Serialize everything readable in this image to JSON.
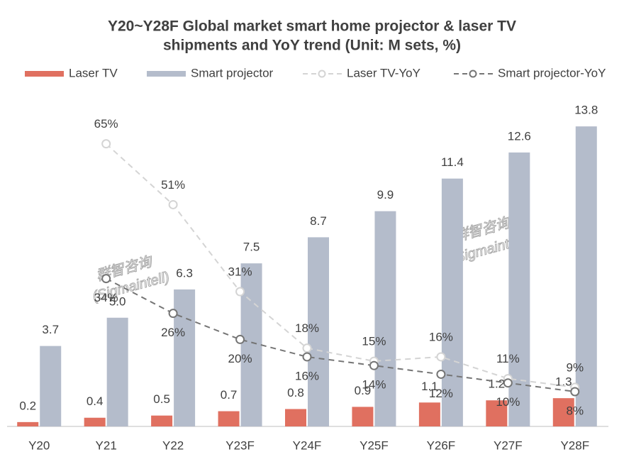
{
  "chart_data": {
    "type": "bar_line",
    "title": "Y20~Y28F Global market smart home  projector & laser TV",
    "subtitle": "shipments and YoY trend (Unit: M sets, %)",
    "categories": [
      "Y20",
      "Y21",
      "Y22",
      "Y23F",
      "Y24F",
      "Y25F",
      "Y26F",
      "Y27F",
      "Y28F"
    ],
    "series": [
      {
        "name": "Laser TV",
        "type": "bar",
        "color": "#e07060",
        "values": [
          0.2,
          0.4,
          0.5,
          0.7,
          0.8,
          0.9,
          1.1,
          1.2,
          1.3
        ]
      },
      {
        "name": "Smart projector",
        "type": "bar",
        "color": "#b4bccb",
        "values": [
          3.7,
          5.0,
          6.3,
          7.5,
          8.7,
          9.9,
          11.4,
          12.6,
          13.8
        ],
        "value_labels": [
          "3.7",
          "5.0",
          "6.3",
          "7.5",
          "8.7",
          "9.9",
          "11.4",
          "12.6",
          "13.8"
        ]
      },
      {
        "name": "Laser TV-YoY",
        "type": "line",
        "axis": "y2",
        "color": "#d4d4d4",
        "values": [
          null,
          65,
          51,
          31,
          18,
          15,
          16,
          11,
          9
        ],
        "value_labels": [
          null,
          "65%",
          "51%",
          "31%",
          "18%",
          "15%",
          "16%",
          "11%",
          "9%"
        ]
      },
      {
        "name": "Smart projector-YoY",
        "type": "line",
        "axis": "y2",
        "color": "#757575",
        "values": [
          null,
          34,
          26,
          20,
          16,
          14,
          12,
          10,
          8
        ],
        "value_labels": [
          null,
          "34%",
          "26%",
          "20%",
          "16%",
          "14%",
          "12%",
          "10%",
          "8%"
        ]
      }
    ],
    "ylim": [
      0,
      14
    ],
    "y2lim": [
      0,
      70
    ],
    "watermark": [
      "群智咨询",
      "(Sigmaintell)"
    ]
  }
}
